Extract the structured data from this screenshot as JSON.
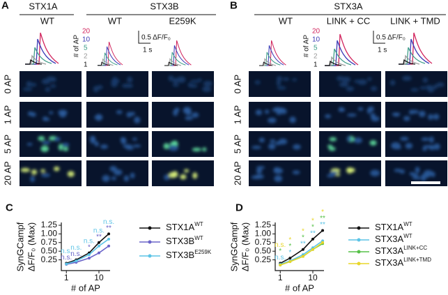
{
  "panels": {
    "A": {
      "label": "A",
      "group_left": "STX1A",
      "group_right": "STX3B",
      "columns": [
        "WT",
        "WT",
        "E259K"
      ]
    },
    "B": {
      "label": "B",
      "group": "STX3A",
      "columns": [
        "WT",
        "LINK + CC",
        "LINK + TMD"
      ]
    },
    "legend_title": "# of AP",
    "legend_levels": [
      "20",
      "10",
      "5",
      "2",
      "1"
    ],
    "scale_y": "0.5 ΔF/F₀",
    "scale_x": "1 s",
    "rows": [
      "0 AP",
      "1 AP",
      "5 AP",
      "20 AP"
    ]
  },
  "chart_data": [
    {
      "type": "line",
      "label": "C",
      "xlabel": "# of AP",
      "ylabel": [
        "SynGCampf",
        "ΔF/F₀ (Max)"
      ],
      "x": [
        1,
        2,
        5,
        10,
        20
      ],
      "xlim": [
        0.7,
        22
      ],
      "xticks": [
        1,
        10
      ],
      "log_x": true,
      "ylim": [
        0,
        1.25
      ],
      "yticks": [
        0.25,
        {
          "value": 0.5,
          "label": "0.50"
        },
        0.75,
        {
          "value": 1,
          "label": "1.00"
        },
        1.25
      ],
      "series": [
        {
          "name": "STX1A",
          "sup": "WT",
          "color": "#111111",
          "values": [
            0.15,
            0.25,
            0.45,
            0.75,
            1.0
          ]
        },
        {
          "name": "STX3B",
          "sup": "WT",
          "color": "#6a63c9",
          "values": [
            0.12,
            0.18,
            0.3,
            0.45,
            0.65
          ],
          "significance": [
            "n.s.",
            "n.s.",
            "*",
            "**",
            "**"
          ]
        },
        {
          "name": "STX3B",
          "sup": "E259K",
          "color": "#5cc4e6",
          "values": [
            0.13,
            0.22,
            0.4,
            0.65,
            0.85
          ],
          "significance": [
            "n.s.",
            "n.s.",
            "n.s.",
            "n.s.",
            "n.s."
          ]
        }
      ]
    },
    {
      "type": "line",
      "label": "D",
      "xlabel": "# of AP",
      "ylabel": [
        "SynGCampf",
        "ΔF/F₀ (Max)"
      ],
      "x": [
        1,
        2,
        5,
        10,
        20
      ],
      "xlim": [
        0.7,
        22
      ],
      "xticks": [
        1,
        10
      ],
      "log_x": true,
      "ylim": [
        0,
        1.25
      ],
      "yticks": [
        0.25,
        {
          "value": 0.5,
          "label": "0.50"
        },
        0.75,
        {
          "value": 1,
          "label": "1.00"
        },
        1.25
      ],
      "series": [
        {
          "name": "STX1A",
          "sup": "WT",
          "color": "#111111",
          "values": [
            0.15,
            0.3,
            0.55,
            0.85,
            1.1
          ]
        },
        {
          "name": "STX3A",
          "sup": "WT",
          "color": "#5cc4e6",
          "values": [
            0.12,
            0.22,
            0.4,
            0.6,
            0.8
          ],
          "significance": [
            "n.s.",
            "*",
            "**",
            "**",
            "**"
          ]
        },
        {
          "name": "STX3A",
          "sup": "LINK+CC",
          "color": "#56c148",
          "values": [
            0.1,
            0.2,
            0.35,
            0.55,
            0.72
          ],
          "significance": [
            "*",
            "*",
            "*",
            "*",
            "**"
          ]
        },
        {
          "name": "STX3A",
          "sup": "LINK+TMD",
          "color": "#e8d62a",
          "values": [
            0.1,
            0.2,
            0.35,
            0.55,
            0.75
          ],
          "significance": [
            "n.s.",
            "*",
            "*",
            "*",
            "*"
          ]
        }
      ]
    }
  ]
}
